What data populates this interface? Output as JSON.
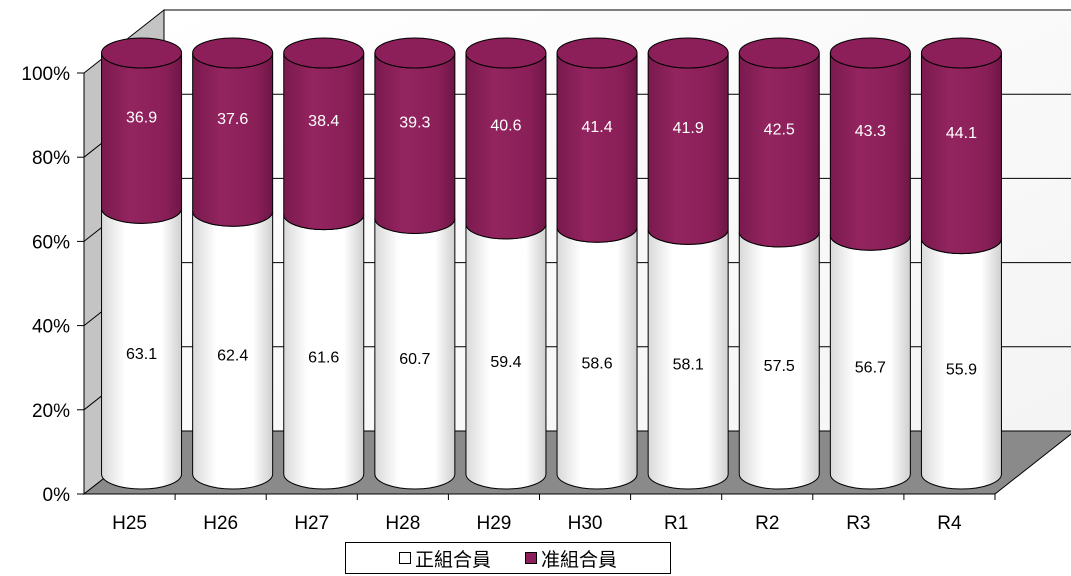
{
  "chart_data": {
    "type": "bar",
    "stacked": true,
    "percent_stacked": true,
    "style": "3d-cylinder",
    "categories": [
      "H25",
      "H26",
      "H27",
      "H28",
      "H29",
      "H30",
      "R1",
      "R2",
      "R3",
      "R4"
    ],
    "series": [
      {
        "name": "正組合員",
        "color": "#ffffff",
        "values": [
          63.1,
          62.4,
          61.6,
          60.7,
          59.4,
          58.6,
          58.1,
          57.5,
          56.7,
          55.9
        ]
      },
      {
        "name": "准組合員",
        "color": "#8e1f5b",
        "values": [
          36.9,
          37.6,
          38.4,
          39.3,
          40.6,
          41.4,
          41.9,
          42.5,
          43.3,
          44.1
        ]
      }
    ],
    "yticks": [
      "0%",
      "20%",
      "40%",
      "60%",
      "80%",
      "100%"
    ],
    "ylim": [
      0,
      100
    ],
    "grid": true,
    "legend_position": "bottom",
    "data_labels": true
  }
}
